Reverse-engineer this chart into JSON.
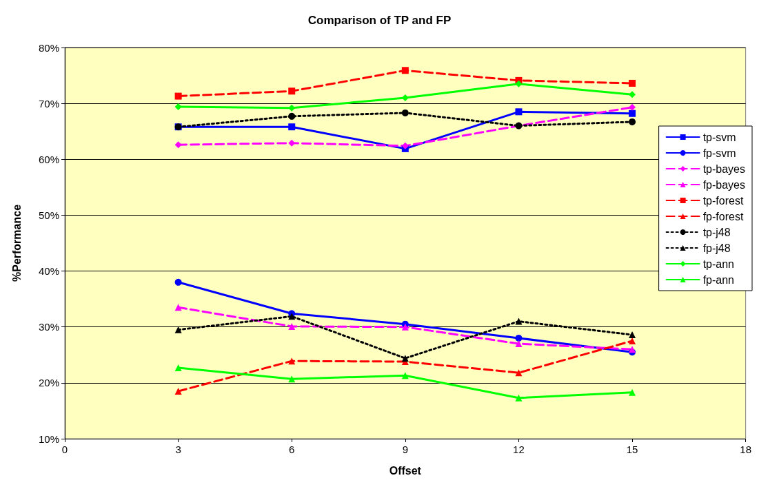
{
  "chart_data": {
    "type": "line",
    "title": "Comparison of TP and FP",
    "xlabel": "Offset",
    "ylabel": "%Performance",
    "x": [
      3,
      6,
      9,
      12,
      15
    ],
    "xlim": [
      0,
      18
    ],
    "xticks": [
      0,
      3,
      6,
      9,
      12,
      15,
      18
    ],
    "ylim": [
      10,
      80
    ],
    "yticks": [
      {
        "value": 10,
        "label": "10%"
      },
      {
        "value": 20,
        "label": "20%"
      },
      {
        "value": 30,
        "label": "30%"
      },
      {
        "value": 40,
        "label": "40%"
      },
      {
        "value": 50,
        "label": "50%"
      },
      {
        "value": 60,
        "label": "60%"
      },
      {
        "value": 70,
        "label": "70%"
      },
      {
        "value": 80,
        "label": "80%"
      }
    ],
    "grid": "y",
    "legend": "right",
    "series": [
      {
        "name": "tp-svm",
        "color": "#0000ff",
        "marker": "square",
        "line_style": "solid",
        "values": [
          65.8,
          65.8,
          61.9,
          68.5,
          68.2
        ]
      },
      {
        "name": "fp-svm",
        "color": "#0000ff",
        "marker": "circle",
        "line_style": "solid",
        "values": [
          38.0,
          32.4,
          30.5,
          28.0,
          25.5
        ]
      },
      {
        "name": "tp-bayes",
        "color": "#ff00ff",
        "marker": "diamond",
        "line_style": "dashed",
        "values": [
          62.6,
          62.9,
          62.4,
          66.0,
          69.3
        ]
      },
      {
        "name": "fp-bayes",
        "color": "#ff00ff",
        "marker": "triangle",
        "line_style": "dashed",
        "values": [
          33.5,
          30.1,
          30.0,
          27.0,
          26.0
        ]
      },
      {
        "name": "tp-forest",
        "color": "#ff0000",
        "marker": "square",
        "line_style": "dashed",
        "values": [
          71.3,
          72.2,
          75.9,
          74.1,
          73.6
        ]
      },
      {
        "name": "fp-forest",
        "color": "#ff0000",
        "marker": "triangle",
        "line_style": "dashed",
        "values": [
          18.5,
          23.9,
          23.8,
          21.8,
          27.5
        ]
      },
      {
        "name": "tp-j48",
        "color": "#000000",
        "marker": "circle",
        "line_style": "dotted",
        "values": [
          65.8,
          67.7,
          68.3,
          66.0,
          66.7
        ]
      },
      {
        "name": "fp-j48",
        "color": "#000000",
        "marker": "triangle",
        "line_style": "dotted",
        "values": [
          29.5,
          31.9,
          24.4,
          31.0,
          28.6
        ]
      },
      {
        "name": "tp-ann",
        "color": "#00ff00",
        "marker": "diamond",
        "line_style": "solid",
        "values": [
          69.4,
          69.2,
          71.0,
          73.5,
          71.6
        ]
      },
      {
        "name": "fp-ann",
        "color": "#00ff00",
        "marker": "triangle",
        "line_style": "solid",
        "values": [
          22.7,
          20.7,
          21.3,
          17.3,
          18.3
        ]
      }
    ]
  }
}
